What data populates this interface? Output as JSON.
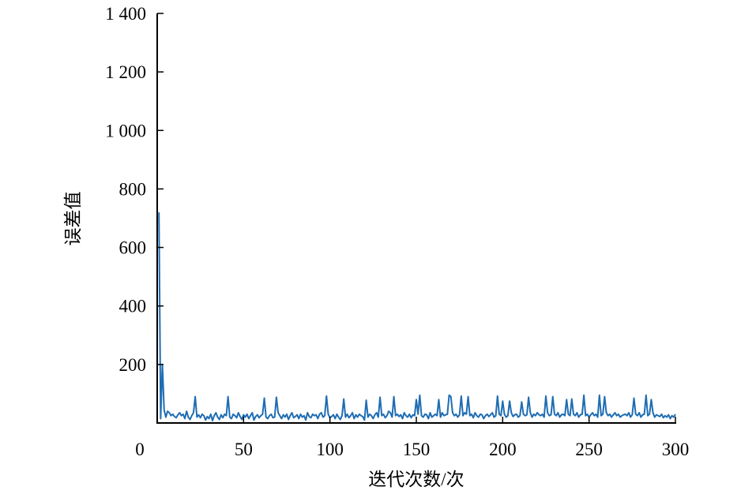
{
  "chart_data": {
    "type": "line",
    "x_label": "迭代次数/次",
    "y_label": "误差值",
    "color": "#1f6db3",
    "xlim": [
      0,
      300
    ],
    "xticks": [
      0,
      50,
      100,
      150,
      200,
      250,
      300
    ],
    "ylim": [
      0,
      1400
    ],
    "yticks": [
      200,
      400,
      600,
      800,
      {
        "value": 1000,
        "label": "1 000"
      },
      {
        "value": 1200,
        "label": "1 200"
      },
      {
        "value": 1400,
        "label": "1 400"
      }
    ],
    "x": [
      1,
      2,
      3,
      4,
      5,
      6,
      7,
      8,
      9,
      10,
      11,
      12,
      13,
      14,
      15,
      16,
      17,
      18,
      19,
      20,
      21,
      22,
      23,
      24,
      25,
      26,
      27,
      28,
      29,
      30,
      31,
      32,
      33,
      34,
      35,
      36,
      37,
      38,
      39,
      40,
      41,
      42,
      43,
      44,
      45,
      46,
      47,
      48,
      49,
      50,
      51,
      52,
      53,
      54,
      55,
      56,
      57,
      58,
      59,
      60,
      61,
      62,
      63,
      64,
      65,
      66,
      67,
      68,
      69,
      70,
      71,
      72,
      73,
      74,
      75,
      76,
      77,
      78,
      79,
      80,
      81,
      82,
      83,
      84,
      85,
      86,
      87,
      88,
      89,
      90,
      91,
      92,
      93,
      94,
      95,
      96,
      97,
      98,
      99,
      100,
      101,
      102,
      103,
      104,
      105,
      106,
      107,
      108,
      109,
      110,
      111,
      112,
      113,
      114,
      115,
      116,
      117,
      118,
      119,
      120,
      121,
      122,
      123,
      124,
      125,
      126,
      127,
      128,
      129,
      130,
      131,
      132,
      133,
      134,
      135,
      136,
      137,
      138,
      139,
      140,
      141,
      142,
      143,
      144,
      145,
      146,
      147,
      148,
      149,
      150,
      151,
      152,
      153,
      154,
      155,
      156,
      157,
      158,
      159,
      160,
      161,
      162,
      163,
      164,
      165,
      166,
      167,
      168,
      169,
      170,
      171,
      172,
      173,
      174,
      175,
      176,
      177,
      178,
      179,
      180,
      181,
      182,
      183,
      184,
      185,
      186,
      187,
      188,
      189,
      190,
      191,
      192,
      193,
      194,
      195,
      196,
      197,
      198,
      199,
      200,
      201,
      202,
      203,
      204,
      205,
      206,
      207,
      208,
      209,
      210,
      211,
      212,
      213,
      214,
      215,
      216,
      217,
      218,
      219,
      220,
      221,
      222,
      223,
      224,
      225,
      226,
      227,
      228,
      229,
      230,
      231,
      232,
      233,
      234,
      235,
      236,
      237,
      238,
      239,
      240,
      241,
      242,
      243,
      244,
      245,
      246,
      247,
      248,
      249,
      250,
      251,
      252,
      253,
      254,
      255,
      256,
      257,
      258,
      259,
      260,
      261,
      262,
      263,
      264,
      265,
      266,
      267,
      268,
      269,
      270,
      271,
      272,
      273,
      274,
      275,
      276,
      277,
      278,
      279,
      280,
      281,
      282,
      283,
      284,
      285,
      286,
      287,
      288,
      289,
      290,
      291,
      292,
      293,
      294,
      295,
      296,
      297,
      298,
      299,
      300
    ],
    "values": [
      720,
      15,
      200,
      45,
      20,
      40,
      35,
      25,
      30,
      22,
      18,
      28,
      35,
      25,
      30,
      15,
      40,
      20,
      12,
      25,
      35,
      90,
      20,
      28,
      18,
      30,
      25,
      10,
      22,
      15,
      30,
      8,
      25,
      35,
      20,
      12,
      28,
      18,
      30,
      25,
      90,
      20,
      15,
      30,
      25,
      18,
      35,
      22,
      12,
      28,
      20,
      30,
      15,
      25,
      35,
      10,
      22,
      28,
      18,
      25,
      30,
      85,
      20,
      15,
      25,
      30,
      18,
      20,
      88,
      35,
      25,
      15,
      28,
      20,
      30,
      12,
      25,
      35,
      18,
      22,
      28,
      15,
      30,
      20,
      25,
      10,
      35,
      22,
      18,
      30,
      25,
      28,
      15,
      30,
      35,
      20,
      25,
      92,
      30,
      18,
      22,
      28,
      15,
      30,
      20,
      12,
      25,
      82,
      20,
      30,
      18,
      25,
      35,
      15,
      28,
      20,
      30,
      25,
      22,
      10,
      78,
      20,
      30,
      25,
      15,
      28,
      35,
      20,
      88,
      25,
      30,
      18,
      25,
      40,
      35,
      20,
      90,
      25,
      30,
      22,
      28,
      15,
      35,
      25,
      20,
      30,
      18,
      28,
      25,
      80,
      30,
      95,
      25,
      20,
      30,
      28,
      15,
      35,
      20,
      25,
      30,
      25,
      80,
      20,
      35,
      25,
      28,
      30,
      95,
      90,
      35,
      25,
      30,
      20,
      28,
      92,
      25,
      35,
      30,
      90,
      25,
      30,
      18,
      35,
      25,
      20,
      30,
      28,
      15,
      25,
      30,
      22,
      28,
      35,
      20,
      25,
      92,
      30,
      25,
      75,
      30,
      20,
      25,
      75,
      35,
      22,
      28,
      30,
      20,
      25,
      72,
      30,
      25,
      28,
      88,
      35,
      20,
      30,
      25,
      35,
      28,
      25,
      30,
      20,
      92,
      35,
      25,
      28,
      90,
      30,
      25,
      35,
      20,
      28,
      30,
      25,
      80,
      30,
      25,
      82,
      30,
      25,
      35,
      20,
      28,
      30,
      95,
      25,
      30,
      20,
      28,
      35,
      25,
      30,
      20,
      95,
      25,
      30,
      90,
      35,
      25,
      30,
      20,
      28,
      35,
      25,
      30,
      20,
      25,
      28,
      30,
      25,
      35,
      20,
      28,
      85,
      30,
      25,
      35,
      20,
      28,
      30,
      95,
      25,
      30,
      80,
      35,
      20,
      28,
      25,
      22,
      30,
      18,
      25,
      20,
      28,
      15,
      25,
      20,
      30
    ]
  }
}
